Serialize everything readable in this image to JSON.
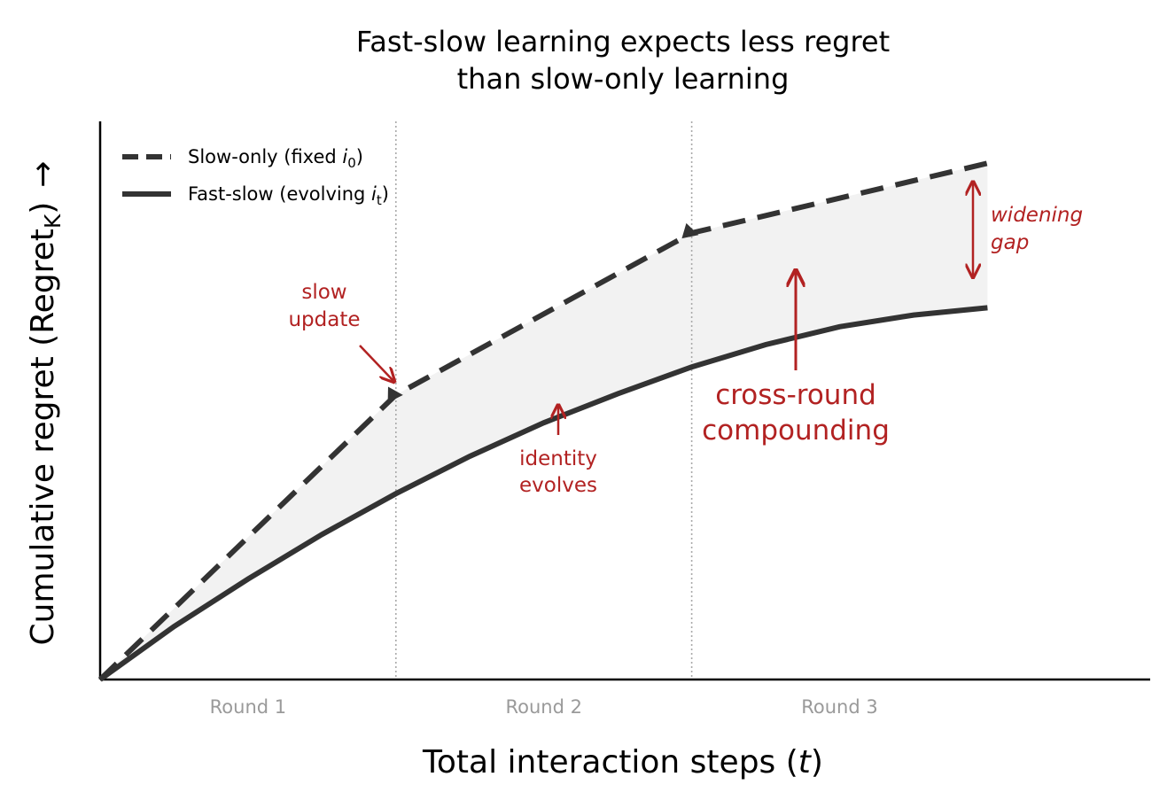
{
  "chart_data": {
    "type": "line",
    "title_lines": [
      "Fast-slow learning expects less regret",
      "than slow-only learning"
    ],
    "xlabel_text": "Total interaction steps (",
    "xlabel_var": "t",
    "xlabel_end": ")",
    "ylabel_base": "Cumulative regret (Regret",
    "ylabel_sub": "K",
    "ylabel_end": ")",
    "ylabel_arrow": "→",
    "xlim": [
      0,
      3.55
    ],
    "ylim": [
      0,
      1.0
    ],
    "ticks_hidden": true,
    "round_boundaries": [
      1,
      2
    ],
    "round_labels": [
      {
        "x": 0.5,
        "label": "Round 1"
      },
      {
        "x": 1.5,
        "label": "Round 2"
      },
      {
        "x": 2.5,
        "label": "Round 3"
      }
    ],
    "series": [
      {
        "name": "Slow-only (fixed i0)",
        "legend_text": "Slow-only (fixed ",
        "legend_var": "i",
        "legend_sub": "0",
        "legend_end": ")",
        "style": "dashed",
        "x": [
          0,
          1,
          2,
          3
        ],
        "y": [
          0,
          0.51,
          0.8,
          0.925
        ]
      },
      {
        "name": "Fast-slow (evolving it)",
        "legend_text": "Fast-slow (evolving ",
        "legend_var": "i",
        "legend_sub": "t",
        "legend_end": ")",
        "style": "solid",
        "x": [
          0,
          0.25,
          0.5,
          0.75,
          1,
          1.25,
          1.5,
          1.75,
          2,
          2.25,
          2.5,
          2.75,
          3
        ],
        "y": [
          0,
          0.095,
          0.18,
          0.26,
          0.333,
          0.4,
          0.46,
          0.512,
          0.56,
          0.6,
          0.632,
          0.653,
          0.666
        ]
      }
    ],
    "update_markers": [
      {
        "x": 1,
        "y": 0.51
      },
      {
        "x": 2,
        "y": 0.8
      }
    ],
    "annotations": [
      {
        "lines": [
          "slow",
          "update"
        ],
        "style": "small"
      },
      {
        "lines": [
          "identity",
          "evolves"
        ],
        "style": "small"
      },
      {
        "lines": [
          "cross-round",
          "compounding"
        ],
        "style": "large"
      },
      {
        "lines": [
          "widening",
          "gap"
        ],
        "style": "italic"
      }
    ],
    "legend_position": "top-left",
    "grid": false,
    "colors": {
      "line": "#333333",
      "fill": "#f2f2f2",
      "annotation": "#b22222",
      "round_label": "#9a9a9a",
      "divider": "#aaaaaa"
    }
  }
}
